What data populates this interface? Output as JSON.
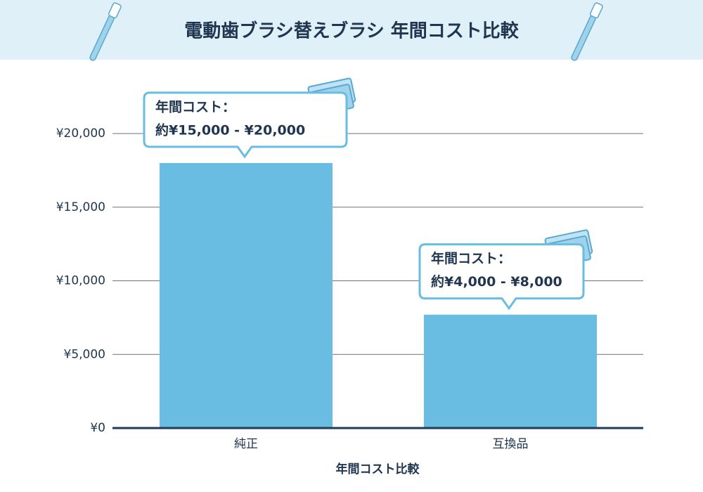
{
  "chart_data": {
    "type": "bar",
    "title": "電動歯ブラシ替えブラシ 年間コスト比較",
    "categories": [
      "純正",
      "互換品"
    ],
    "values": [
      18000,
      7700
    ],
    "color": "#69bde2",
    "xlabel": "年間コスト比較",
    "ylim": [
      0,
      20000
    ],
    "yticks": [
      {
        "value": 0,
        "label": "¥0"
      },
      {
        "value": 5000,
        "label": "¥5,000"
      },
      {
        "value": 10000,
        "label": "¥10,000"
      },
      {
        "value": 15000,
        "label": "¥15,000"
      },
      {
        "value": 20000,
        "label": "¥20,000"
      }
    ],
    "grid": true,
    "annotations": [
      {
        "lines": [
          "年間コスト：",
          "約¥15,000 - ¥20,000"
        ]
      },
      {
        "lines": [
          "年間コスト：",
          "約¥4,000 - ¥8,000"
        ]
      }
    ]
  }
}
